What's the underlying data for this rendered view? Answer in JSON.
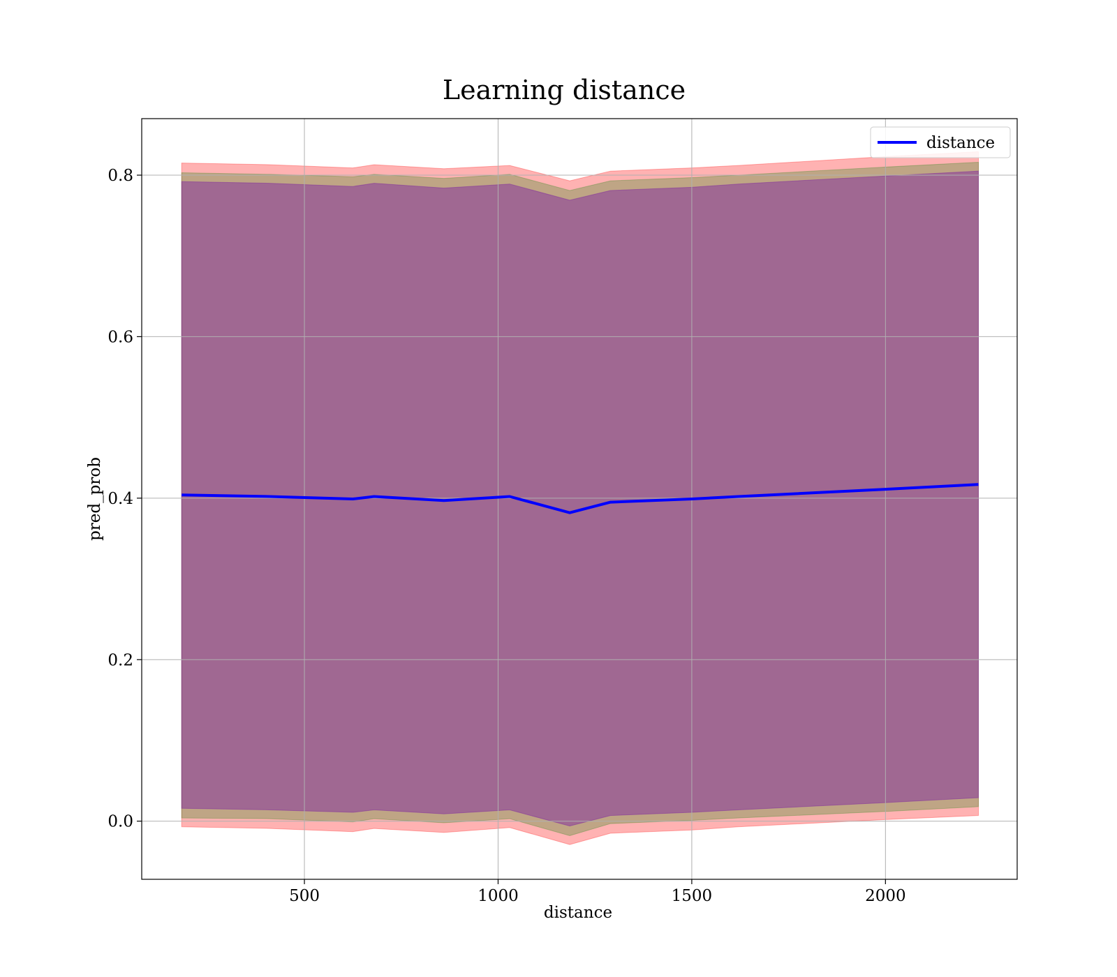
{
  "chart_data": {
    "type": "line",
    "title": "Learning distance",
    "xlabel": "distance",
    "ylabel": "pred_prob",
    "xlim": [
      80,
      2340
    ],
    "ylim": [
      -0.072,
      0.87
    ],
    "xticks": [
      500,
      1000,
      1500,
      2000
    ],
    "yticks": [
      0.0,
      0.2,
      0.4,
      0.6,
      0.8
    ],
    "grid": true,
    "legend_position": "top-right",
    "x": [
      183,
      410,
      625,
      680,
      860,
      1030,
      1185,
      1290,
      1500,
      1620,
      2000,
      2240
    ],
    "series": [
      {
        "name": "distance",
        "color": "#0000ff",
        "values": [
          0.404,
          0.402,
          0.399,
          0.402,
          0.397,
          0.402,
          0.382,
          0.395,
          0.399,
          0.402,
          0.411,
          0.417
        ]
      }
    ],
    "bands": [
      {
        "color": "#ff0000",
        "opacity": 0.3,
        "upper": [
          0.815,
          0.813,
          0.809,
          0.813,
          0.808,
          0.812,
          0.793,
          0.805,
          0.809,
          0.812,
          0.823,
          0.829
        ],
        "lower": [
          -0.007,
          -0.009,
          -0.013,
          -0.009,
          -0.014,
          -0.008,
          -0.029,
          -0.015,
          -0.011,
          -0.007,
          0.002,
          0.007
        ]
      },
      {
        "color": "#008000",
        "opacity": 0.25,
        "upper": [
          0.803,
          0.801,
          0.798,
          0.801,
          0.796,
          0.801,
          0.781,
          0.793,
          0.797,
          0.8,
          0.81,
          0.816
        ],
        "lower": [
          0.004,
          0.003,
          -0.001,
          0.003,
          -0.002,
          0.003,
          -0.018,
          -0.003,
          0.001,
          0.004,
          0.012,
          0.018
        ]
      },
      {
        "color": "#7b1fa2",
        "opacity": 0.45,
        "upper": [
          0.792,
          0.79,
          0.786,
          0.79,
          0.784,
          0.789,
          0.769,
          0.781,
          0.785,
          0.789,
          0.799,
          0.805
        ],
        "lower": [
          0.016,
          0.014,
          0.011,
          0.014,
          0.009,
          0.014,
          -0.006,
          0.007,
          0.011,
          0.014,
          0.023,
          0.029
        ]
      }
    ]
  }
}
